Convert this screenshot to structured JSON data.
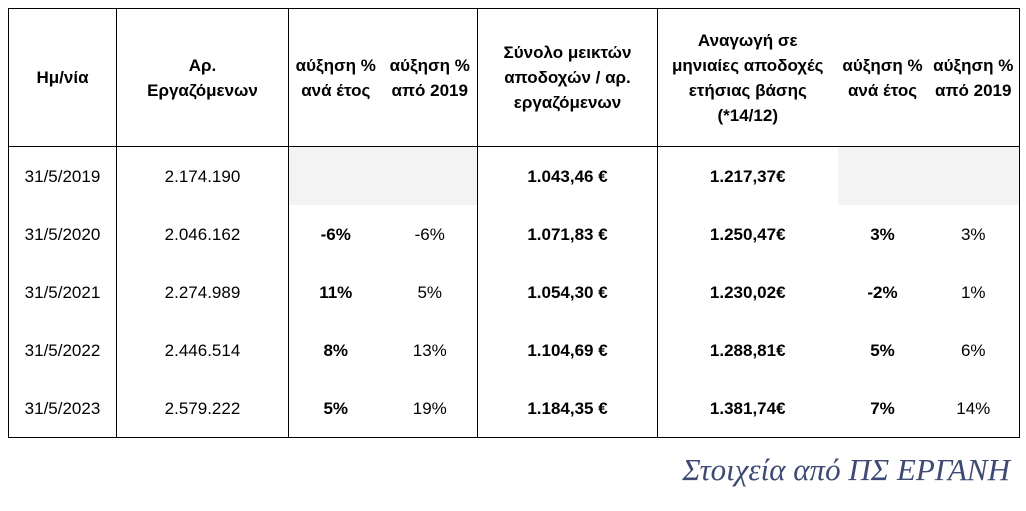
{
  "table": {
    "headers": [
      "Ημ/νία",
      "Αρ. Εργαζόμενων",
      "αύξηση % ανά έτος",
      "αύξηση % από 2019",
      "Σύνολο μεικτών αποδοχών / αρ. εργαζόμενων",
      "Αναγωγή σε μηνιαίες αποδοχές ετήσιας βάσης (*14/12)",
      "αύξηση % ανά έτος",
      "αύξηση % από 2019"
    ],
    "rows": [
      [
        "31/5/2019",
        "2.174.190",
        "",
        "",
        "1.043,46 €",
        "1.217,37€",
        "",
        ""
      ],
      [
        "31/5/2020",
        "2.046.162",
        "-6%",
        "-6%",
        "1.071,83 €",
        "1.250,47€",
        "3%",
        "3%"
      ],
      [
        "31/5/2021",
        "2.274.989",
        "11%",
        "5%",
        "1.054,30 €",
        "1.230,02€",
        "-2%",
        "1%"
      ],
      [
        "31/5/2022",
        "2.446.514",
        "8%",
        "13%",
        "1.104,69 €",
        "1.288,81€",
        "5%",
        "6%"
      ],
      [
        "31/5/2023",
        "2.579.222",
        "5%",
        "19%",
        "1.184,35 €",
        "1.381,74€",
        "7%",
        "14%"
      ]
    ]
  },
  "caption": "Στοιχεία από ΠΣ ΕΡΓΑΝΗ",
  "colors": {
    "shaded_cell": "#f3f3f3",
    "caption": "#3e4a73"
  }
}
